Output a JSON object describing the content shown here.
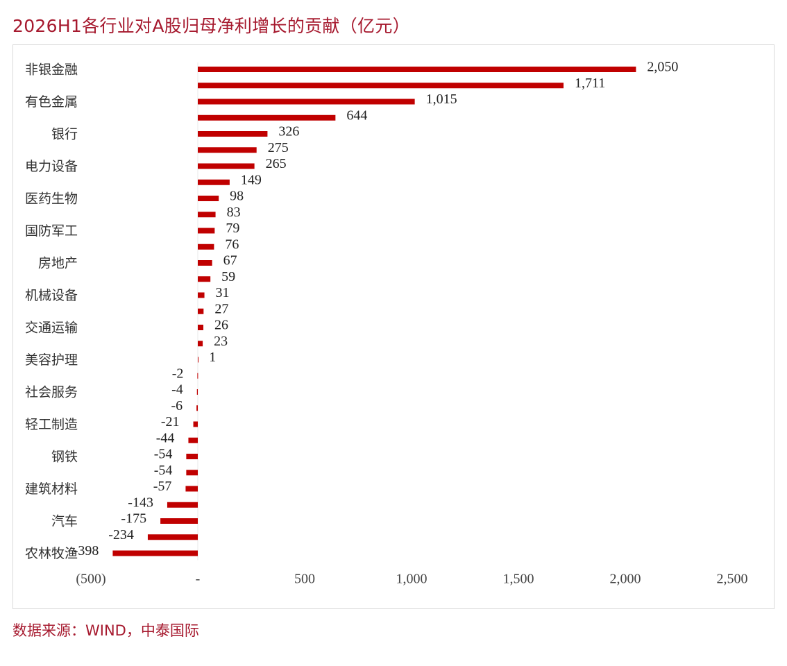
{
  "header": {
    "title": "2026H1各行业对A股归母净利增长的贡献（亿元）"
  },
  "footer": {
    "source": "数据来源：WIND，中泰国际"
  },
  "colors": {
    "bar": "#c00000",
    "title": "#a6192e"
  },
  "chart_data": {
    "type": "bar",
    "orientation": "horizontal",
    "title": "2026H1各行业对A股归母净利增长的贡献（亿元）",
    "values": [
      2050,
      1711,
      1015,
      644,
      326,
      275,
      265,
      149,
      98,
      83,
      79,
      76,
      67,
      59,
      31,
      27,
      26,
      23,
      1,
      -2,
      -4,
      -6,
      -21,
      -44,
      -54,
      -54,
      -57,
      -143,
      -175,
      -234,
      -398
    ],
    "value_labels": [
      "2,050",
      "1,711",
      "1,015",
      "644",
      "326",
      "275",
      "265",
      "149",
      "98",
      "83",
      "79",
      "76",
      "67",
      "59",
      "31",
      "27",
      "26",
      "23",
      "1",
      "-2",
      "-4",
      "-6",
      "-21",
      "-44",
      "-54",
      "-54",
      "-57",
      "-143",
      "-175",
      "-234",
      "-398"
    ],
    "category_labels": [
      {
        "bar_index": 0,
        "text": "非银金融"
      },
      {
        "bar_index": 2,
        "text": "有色金属"
      },
      {
        "bar_index": 4,
        "text": "银行"
      },
      {
        "bar_index": 6,
        "text": "电力设备"
      },
      {
        "bar_index": 8,
        "text": "医药生物"
      },
      {
        "bar_index": 10,
        "text": "国防军工"
      },
      {
        "bar_index": 12,
        "text": "房地产"
      },
      {
        "bar_index": 14,
        "text": "机械设备"
      },
      {
        "bar_index": 16,
        "text": "交通运输"
      },
      {
        "bar_index": 18,
        "text": "美容护理"
      },
      {
        "bar_index": 20,
        "text": "社会服务"
      },
      {
        "bar_index": 22,
        "text": "轻工制造"
      },
      {
        "bar_index": 24,
        "text": "钢铁"
      },
      {
        "bar_index": 26,
        "text": "建筑材料"
      },
      {
        "bar_index": 28,
        "text": "汽车"
      },
      {
        "bar_index": 30,
        "text": "农林牧渔"
      }
    ],
    "x_ticks": [
      {
        "value": -500,
        "label": "(500)"
      },
      {
        "value": 0,
        "label": "-"
      },
      {
        "value": 500,
        "label": "500"
      },
      {
        "value": 1000,
        "label": "1,000"
      },
      {
        "value": 1500,
        "label": "1,500"
      },
      {
        "value": 2000,
        "label": "2,000"
      },
      {
        "value": 2500,
        "label": "2,500"
      }
    ],
    "xlim": [
      -500,
      2500
    ],
    "grid": false,
    "legend": "none"
  }
}
